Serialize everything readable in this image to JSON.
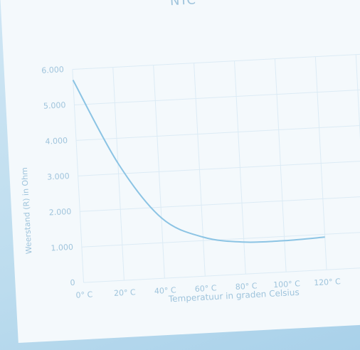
{
  "chart_data": {
    "type": "line",
    "title": "NTC",
    "categories": [
      "0° C",
      "20° C",
      "40° C",
      "60° C",
      "80° C",
      "100° C",
      "120° C"
    ],
    "series": [
      {
        "name": "NTC",
        "color": "#8cc4e4",
        "values": [
          5700,
          3300,
          1700,
          1100,
          900,
          880,
          920
        ]
      }
    ],
    "ylim": [
      0,
      6000
    ],
    "yticks": [
      0,
      {
        "value": 1000,
        "label": "1.000"
      },
      {
        "value": 2000,
        "label": "2.000"
      },
      {
        "value": 3000,
        "label": "3.000"
      },
      {
        "value": 4000,
        "label": "4.000"
      },
      {
        "value": 5000,
        "label": "5.000"
      },
      {
        "value": 6000,
        "label": "6.000"
      }
    ],
    "y_label": "Weerstand (R) in Ohm",
    "x_label": "Temperatuur in graden Celsius",
    "grid": true
  }
}
